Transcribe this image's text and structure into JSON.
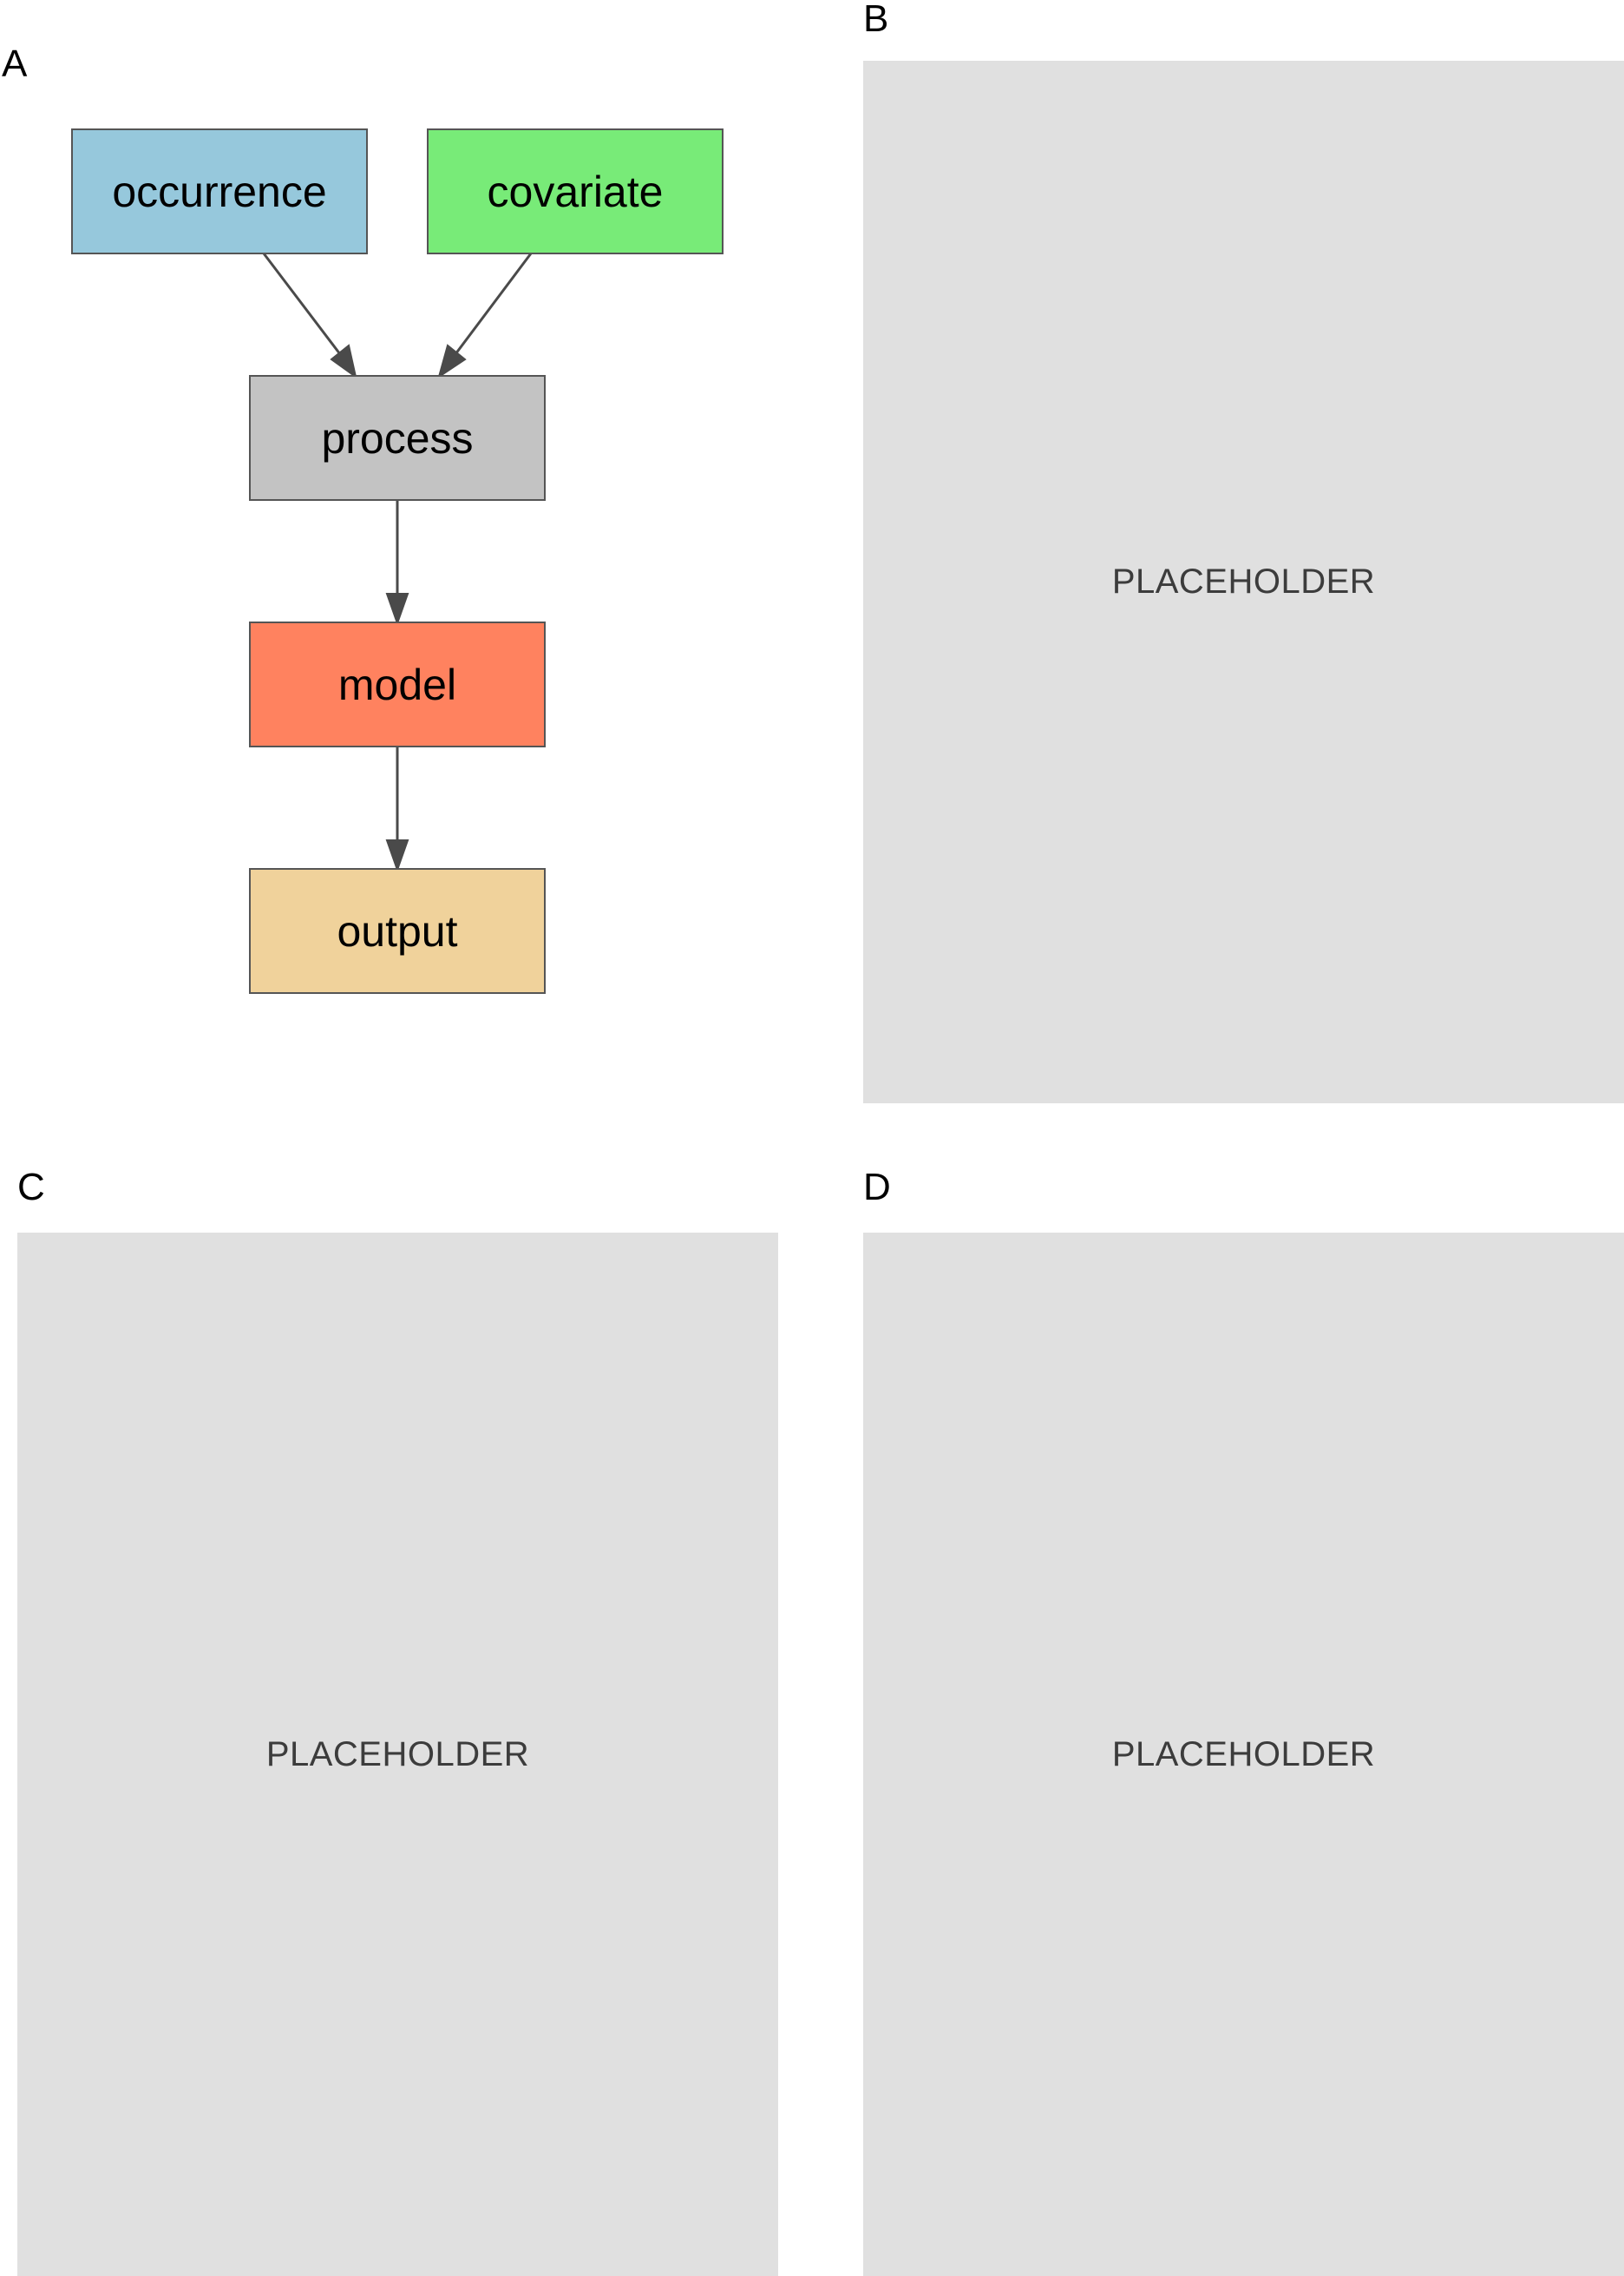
{
  "panels": {
    "a": {
      "label": "A"
    },
    "b": {
      "label": "B",
      "placeholder_text": "PLACEHOLDER"
    },
    "c": {
      "label": "C",
      "placeholder_text": "PLACEHOLDER"
    },
    "d": {
      "label": "D",
      "placeholder_text": "PLACEHOLDER"
    }
  },
  "diagram": {
    "nodes": [
      {
        "id": "occurrence",
        "label": "occurrence",
        "color": "#96c8dc"
      },
      {
        "id": "covariate",
        "label": "covariate",
        "color": "#78eb78"
      },
      {
        "id": "process",
        "label": "process",
        "color": "#c3c3c3"
      },
      {
        "id": "model",
        "label": "model",
        "color": "#ff825f"
      },
      {
        "id": "output",
        "label": "output",
        "color": "#f0d29b"
      }
    ],
    "edges": [
      {
        "from": "occurrence",
        "to": "process"
      },
      {
        "from": "covariate",
        "to": "process"
      },
      {
        "from": "process",
        "to": "model"
      },
      {
        "from": "model",
        "to": "output"
      }
    ],
    "edge_color": "#4a4a4a",
    "node_border_color": "#555555"
  }
}
